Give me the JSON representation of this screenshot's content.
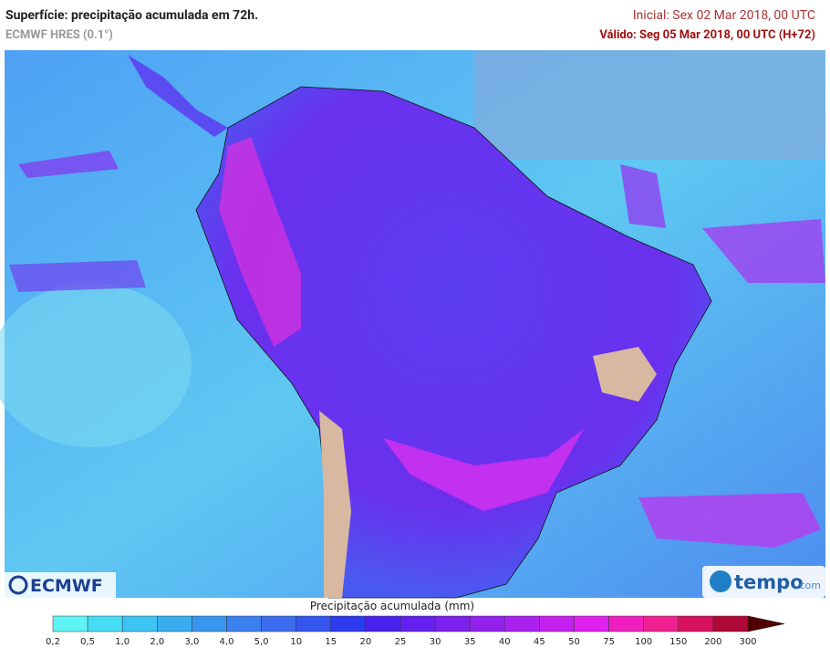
{
  "header": {
    "title": "Superfície: precipitação acumulada em 72h.",
    "model": "ECMWF HRES (0.1°)",
    "initial": "Inicial: Sex 02 Mar 2018, 00 UTC",
    "valid": "Válido: Seg 05 Mar 2018, 00 UTC (H+72)"
  },
  "logos": {
    "left": "ECMWF",
    "right": "tempo",
    "right_suffix": ".com"
  },
  "legend": {
    "label": "Precipitação acumulada (mm)",
    "ticks": [
      "0,2",
      "0,5",
      "1,0",
      "2,0",
      "3,0",
      "4,0",
      "5,0",
      "10",
      "15",
      "20",
      "25",
      "30",
      "35",
      "40",
      "45",
      "50",
      "75",
      "100",
      "150",
      "200",
      "300"
    ],
    "colors": [
      "#5ef3f5",
      "#45dcf5",
      "#3cc4f2",
      "#38aef0",
      "#3796ee",
      "#3a80ee",
      "#3c6cee",
      "#3455ef",
      "#2c3af0",
      "#4a22ee",
      "#6420ee",
      "#7c20ee",
      "#9420ee",
      "#aa20ee",
      "#c420ee",
      "#e020ee",
      "#f020c0",
      "#f02090",
      "#d81060",
      "#b00838",
      "#900020",
      "#500000"
    ]
  }
}
